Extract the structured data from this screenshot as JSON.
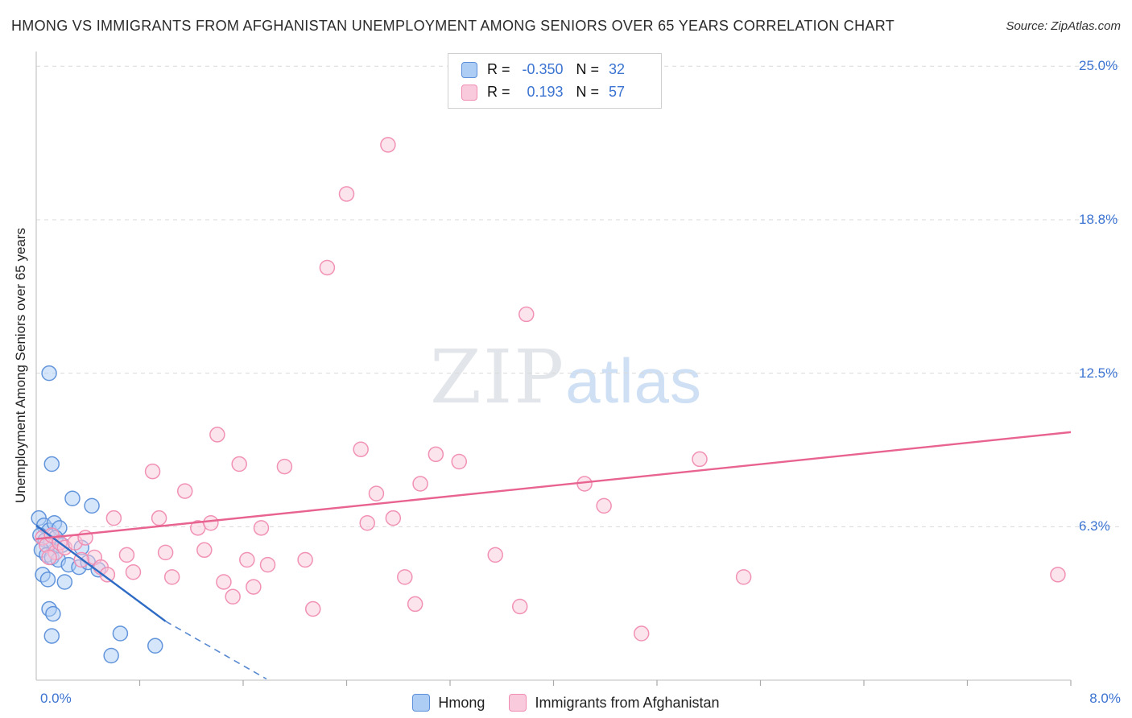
{
  "header": {
    "title": "HMONG VS IMMIGRANTS FROM AFGHANISTAN UNEMPLOYMENT AMONG SENIORS OVER 65 YEARS CORRELATION CHART",
    "source": "Source: ZipAtlas.com"
  },
  "watermark": {
    "zip": "ZIP",
    "atlas": "atlas"
  },
  "stats_legend": {
    "rows": [
      {
        "r_label": "R =",
        "r_value": "-0.350",
        "n_label": "N =",
        "n_value": "32"
      },
      {
        "r_label": "R =",
        "r_value": "0.193",
        "n_label": "N =",
        "n_value": "57"
      }
    ]
  },
  "bottom_legend": {
    "items": [
      {
        "label": "Hmong"
      },
      {
        "label": "Immigrants from Afghanistan"
      }
    ]
  },
  "axes": {
    "x_left_label": "0.0%",
    "x_right_label": "8.0%",
    "ylabel": "Unemployment Among Seniors over 65 years"
  },
  "chart_data": {
    "type": "scatter",
    "title": "Hmong vs Immigrants from Afghanistan Unemployment Among Seniors over 65 years",
    "xlabel": "Population share (%)",
    "ylabel": "Unemployment Among Seniors over 65 years",
    "xlim": [
      0,
      8.0
    ],
    "ylim": [
      0,
      25.6
    ],
    "grid": true,
    "legend_position": "top-center",
    "x_ticks": [
      {
        "label": "0.0%",
        "value": 0
      },
      {
        "label": "8.0%",
        "value": 8.0
      }
    ],
    "x_minor_ticks": [
      0.8,
      1.6,
      2.4,
      3.2,
      4.0,
      4.8,
      5.6,
      6.4,
      7.2
    ],
    "y_ticks": [
      {
        "label": "25.0%",
        "value": 25.0
      },
      {
        "label": "18.8%",
        "value": 18.75
      },
      {
        "label": "12.5%",
        "value": 12.5
      },
      {
        "label": "6.3%",
        "value": 6.25
      }
    ],
    "colors": {
      "blue_fill": "#aecdf5",
      "blue_stroke": "#5b8fd9",
      "blue_line": "#2e6bc4",
      "pink_fill": "#f9c9dc",
      "pink_stroke": "#f08cb1",
      "pink_line": "#e8638f",
      "grid": "#d9d9d9",
      "axis": "#c9c9c9",
      "tick_label": "#3b73d1"
    },
    "series": [
      {
        "name": "Hmong",
        "R": -0.35,
        "N": 32,
        "fill": "#aecdf5",
        "stroke": "#5b8fd9",
        "line_color": "#2e6bc4",
        "trend": {
          "solid": [
            [
              0,
              6.3
            ],
            [
              1.0,
              2.4
            ]
          ],
          "dashed": [
            [
              1.0,
              2.4
            ],
            [
              1.78,
              0.05
            ]
          ]
        },
        "points": [
          [
            0.1,
            12.5
          ],
          [
            0.12,
            8.8
          ],
          [
            0.28,
            7.4
          ],
          [
            0.43,
            7.1
          ],
          [
            0.02,
            6.6
          ],
          [
            0.06,
            6.3
          ],
          [
            0.1,
            6.1
          ],
          [
            0.14,
            6.4
          ],
          [
            0.18,
            6.2
          ],
          [
            0.03,
            5.9
          ],
          [
            0.07,
            5.7
          ],
          [
            0.11,
            5.6
          ],
          [
            0.15,
            5.8
          ],
          [
            0.2,
            5.5
          ],
          [
            0.04,
            5.3
          ],
          [
            0.08,
            5.1
          ],
          [
            0.12,
            5.0
          ],
          [
            0.17,
            4.9
          ],
          [
            0.35,
            5.4
          ],
          [
            0.25,
            4.7
          ],
          [
            0.33,
            4.6
          ],
          [
            0.4,
            4.8
          ],
          [
            0.48,
            4.5
          ],
          [
            0.05,
            4.3
          ],
          [
            0.09,
            4.1
          ],
          [
            0.22,
            4.0
          ],
          [
            0.1,
            2.9
          ],
          [
            0.13,
            2.7
          ],
          [
            0.12,
            1.8
          ],
          [
            0.58,
            1.0
          ],
          [
            0.65,
            1.9
          ],
          [
            0.92,
            1.4
          ]
        ]
      },
      {
        "name": "Immigrants from Afghanistan",
        "R": 0.193,
        "N": 57,
        "fill": "#f9c9dc",
        "stroke": "#f08cb1",
        "line_color": "#e8638f",
        "trend": {
          "solid": [
            [
              0,
              5.75
            ],
            [
              8.0,
              10.1
            ]
          ]
        },
        "points": [
          [
            0.05,
            5.8
          ],
          [
            0.08,
            5.5
          ],
          [
            0.12,
            5.9
          ],
          [
            0.15,
            5.2
          ],
          [
            0.18,
            5.6
          ],
          [
            0.1,
            5.0
          ],
          [
            0.22,
            5.4
          ],
          [
            0.45,
            5.0
          ],
          [
            0.3,
            5.6
          ],
          [
            0.38,
            5.8
          ],
          [
            0.35,
            4.9
          ],
          [
            0.6,
            6.6
          ],
          [
            0.5,
            4.6
          ],
          [
            0.55,
            4.3
          ],
          [
            0.7,
            5.1
          ],
          [
            0.75,
            4.4
          ],
          [
            0.9,
            8.5
          ],
          [
            0.95,
            6.6
          ],
          [
            1.0,
            5.2
          ],
          [
            1.05,
            4.2
          ],
          [
            1.15,
            7.7
          ],
          [
            1.25,
            6.2
          ],
          [
            1.3,
            5.3
          ],
          [
            1.35,
            6.4
          ],
          [
            1.4,
            10.0
          ],
          [
            1.45,
            4.0
          ],
          [
            1.52,
            3.4
          ],
          [
            1.57,
            8.8
          ],
          [
            1.63,
            4.9
          ],
          [
            1.68,
            3.8
          ],
          [
            1.74,
            6.2
          ],
          [
            1.79,
            4.7
          ],
          [
            1.92,
            8.7
          ],
          [
            2.08,
            4.9
          ],
          [
            2.14,
            2.9
          ],
          [
            2.25,
            16.8
          ],
          [
            2.4,
            19.8
          ],
          [
            2.51,
            9.4
          ],
          [
            2.56,
            6.4
          ],
          [
            2.63,
            7.6
          ],
          [
            2.72,
            21.8
          ],
          [
            2.76,
            6.6
          ],
          [
            2.85,
            4.2
          ],
          [
            2.93,
            3.1
          ],
          [
            2.97,
            8.0
          ],
          [
            3.09,
            9.2
          ],
          [
            3.27,
            8.9
          ],
          [
            3.55,
            5.1
          ],
          [
            3.74,
            3.0
          ],
          [
            3.79,
            14.9
          ],
          [
            3.85,
            24.9
          ],
          [
            4.24,
            8.0
          ],
          [
            4.39,
            7.1
          ],
          [
            4.68,
            1.9
          ],
          [
            5.13,
            9.0
          ],
          [
            5.47,
            4.2
          ],
          [
            7.9,
            4.3
          ]
        ]
      }
    ]
  }
}
